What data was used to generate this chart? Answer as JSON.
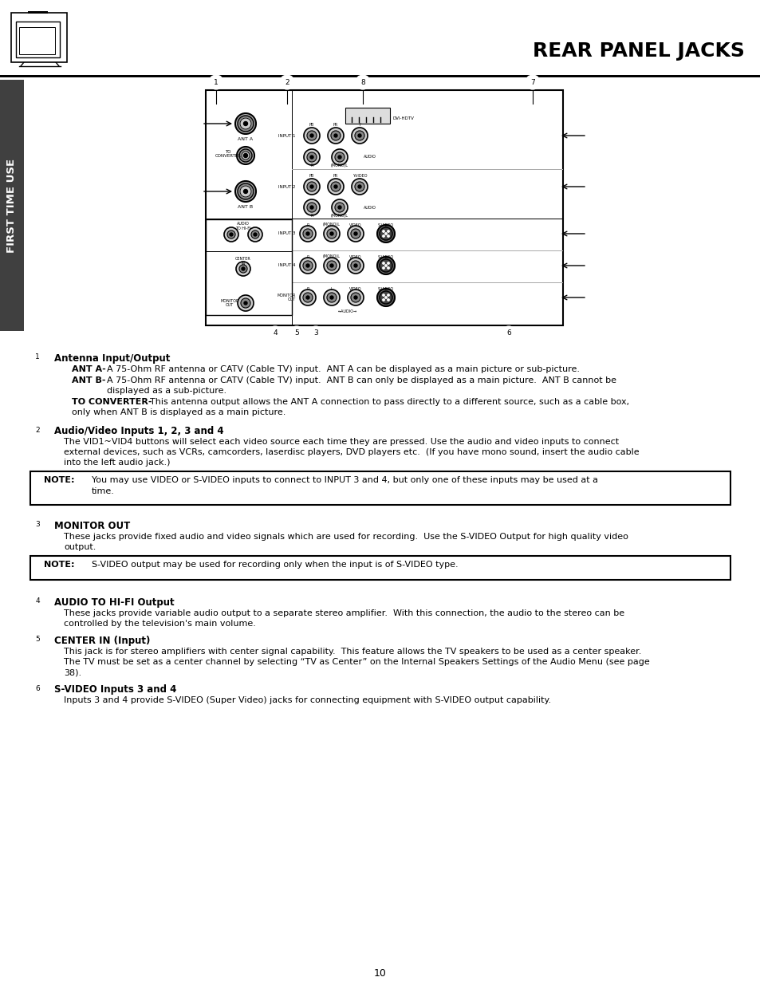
{
  "title": "REAR PANEL JACKS",
  "page_number": "10",
  "sidebar_text": "FIRST TIME USE",
  "background_color": "#ffffff",
  "sidebar_color": "#404040",
  "sidebar_text_color": "#ffffff",
  "section1_heading": "Antenna Input/Output",
  "section1_num": "1",
  "section2_heading": "Audio/Video Inputs 1, 2, 3 and 4",
  "section2_num": "2",
  "section3_heading": "MONITOR OUT",
  "section3_num": "3",
  "section4_heading": "AUDIO TO HI-FI Output",
  "section4_num": "4",
  "section5_heading": "CENTER IN (Input)",
  "section5_num": "5",
  "section6_heading": "S-VIDEO Inputs 3 and 4",
  "section6_num": "6"
}
